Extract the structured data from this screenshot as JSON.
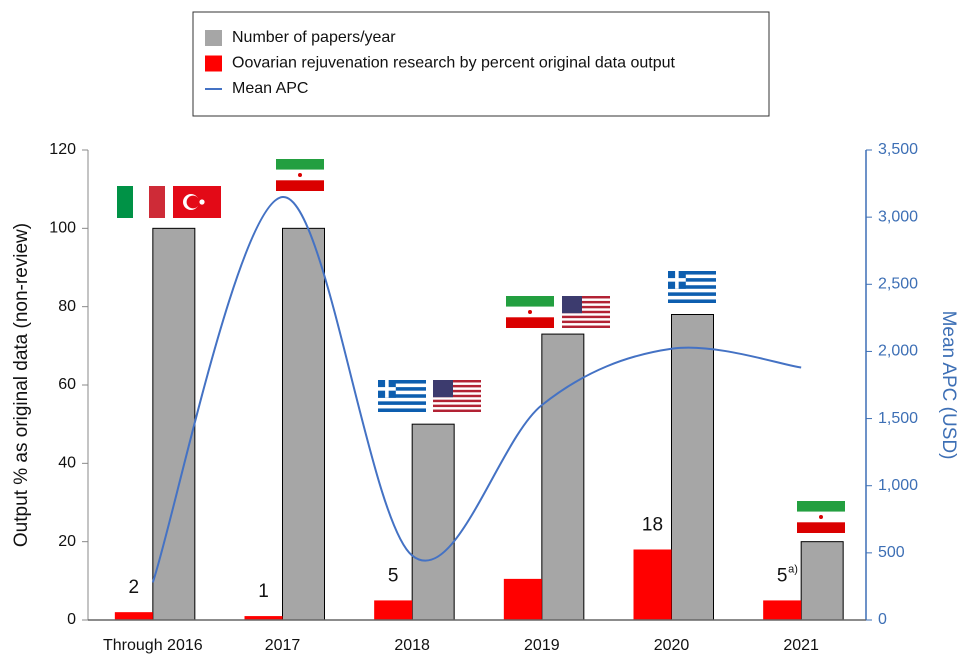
{
  "chart_data": {
    "type": "bar",
    "categories": [
      "Through 2016",
      "2017",
      "2018",
      "2019",
      "2020",
      "2021"
    ],
    "series": [
      {
        "name": "Number of papers/year",
        "color": "#a6a6a6",
        "values": [
          100,
          100,
          50,
          73,
          78,
          20
        ]
      },
      {
        "name": "Oovarian rejuvenation research by percent original data output",
        "color": "#ff0000",
        "values": [
          2,
          1,
          5,
          10.5,
          18,
          5
        ],
        "value_labels": [
          "2",
          "1",
          "5",
          null,
          "18",
          "5"
        ]
      },
      {
        "name": "Mean APC",
        "color": "#4472c4",
        "type": "line",
        "axis": "y2",
        "values": [
          280,
          3150,
          480,
          1600,
          2020,
          1880
        ]
      }
    ],
    "annotations": [
      "a)"
    ],
    "ylabel": "Output % as original data (non-review)",
    "y2label": "Mean APC (USD)",
    "ylim": [
      0,
      120
    ],
    "yticks": [
      0,
      20,
      40,
      60,
      80,
      100,
      120
    ],
    "y2lim": [
      0,
      3500
    ],
    "y2ticks": [
      0,
      500,
      {
        "value": 1000,
        "label": "1,000"
      },
      {
        "value": 1500,
        "label": "1,500"
      },
      {
        "value": 2000,
        "label": "2,000"
      },
      {
        "value": 2500,
        "label": "2,500"
      },
      {
        "value": 3000,
        "label": "3,000"
      },
      {
        "value": 3500,
        "label": "3,500"
      }
    ],
    "legend": "top"
  }
}
